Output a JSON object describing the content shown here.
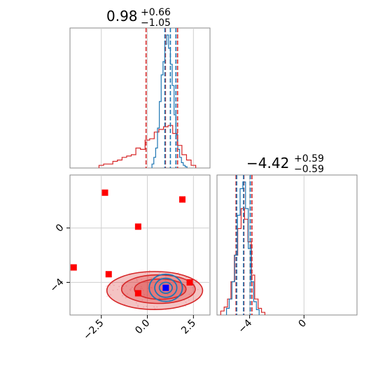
{
  "chart_data": [
    {
      "type": "histogram",
      "panel": "top-left marginal",
      "title": {
        "value": "0.98",
        "plus": "+0.66",
        "minus": "−1.05"
      },
      "xlim": [
        -4.2,
        3.4
      ],
      "grid": true,
      "series": [
        {
          "name": "",
          "color": "#d62728",
          "bins": [
            -2.5,
            -2.25,
            -2.0,
            -1.75,
            -1.5,
            -1.25,
            -1.0,
            -0.75,
            -0.5,
            -0.25,
            0.0,
            0.25,
            0.5,
            0.75,
            1.0,
            1.25,
            1.5,
            1.75,
            2.0,
            2.25,
            2.5
          ],
          "counts": [
            0.02,
            0.03,
            0.03,
            0.05,
            0.06,
            0.08,
            0.09,
            0.1,
            0.15,
            0.14,
            0.21,
            0.22,
            0.27,
            0.29,
            0.31,
            0.32,
            0.26,
            0.17,
            0.1,
            0.06,
            0.02
          ],
          "quantile_lines": [
            -0.07,
            0.98,
            1.64
          ]
        },
        {
          "name": "",
          "color": "#1f77b4",
          "bins": [
            0.3,
            0.4,
            0.5,
            0.6,
            0.7,
            0.8,
            0.9,
            1.0,
            1.1,
            1.2,
            1.3,
            1.4,
            1.5,
            1.6,
            1.7,
            1.8,
            1.9,
            2.0,
            2.1
          ],
          "counts": [
            0.03,
            0.08,
            0.15,
            0.3,
            0.5,
            0.7,
            0.8,
            0.93,
            1.0,
            0.9,
            0.78,
            0.62,
            0.4,
            0.25,
            0.14,
            0.08,
            0.04,
            0.02,
            0.01
          ],
          "quantile_lines": [
            0.95,
            1.25,
            1.55
          ]
        }
      ]
    },
    {
      "type": "scatter",
      "panel": "bottom-left joint",
      "xlim": [
        -4.2,
        3.4
      ],
      "ylim": [
        -6.4,
        3.9
      ],
      "x_ticks": [
        "−2.5",
        "0.0",
        "2.5"
      ],
      "x_tick_values": [
        -2.5,
        0.0,
        2.5
      ],
      "y_ticks": [
        "0",
        "−4"
      ],
      "y_tick_values": [
        0,
        -4
      ],
      "grid": true,
      "red_points": [
        [
          -2.3,
          2.6
        ],
        [
          1.9,
          2.1
        ],
        [
          -0.5,
          0.1
        ],
        [
          -4.0,
          -2.9
        ],
        [
          -2.1,
          -3.4
        ],
        [
          -0.5,
          -4.8
        ],
        [
          2.3,
          -4.0
        ]
      ],
      "blue_points": [
        [
          1.0,
          -4.4
        ]
      ],
      "contours": [
        {
          "color": "#d62728",
          "cx": 0.4,
          "cy": -4.6,
          "rx": 2.6,
          "ry": 1.4
        },
        {
          "color": "#d62728",
          "cx": 0.6,
          "cy": -4.5,
          "rx": 2.0,
          "ry": 1.05
        },
        {
          "color": "#d62728",
          "cx": 0.7,
          "cy": -4.5,
          "rx": 1.4,
          "ry": 0.75
        },
        {
          "color": "#1f77b4",
          "cx": 1.0,
          "cy": -4.4,
          "rx": 0.9,
          "ry": 1.0
        },
        {
          "color": "#1f77b4",
          "cx": 1.0,
          "cy": -4.4,
          "rx": 0.6,
          "ry": 0.7
        },
        {
          "color": "#1f77b4",
          "cx": 1.0,
          "cy": -4.4,
          "rx": 0.35,
          "ry": 0.4
        }
      ]
    },
    {
      "type": "histogram",
      "panel": "bottom-right marginal",
      "title": {
        "value": "−4.42",
        "plus": "+0.59",
        "minus": "−0.59"
      },
      "xlim": [
        -6.4,
        3.9
      ],
      "x_ticks": [
        "−4",
        "0"
      ],
      "x_tick_values": [
        -4,
        0
      ],
      "grid": true,
      "series": [
        {
          "name": "",
          "color": "#d62728",
          "bins": [
            -6.0,
            -5.75,
            -5.5,
            -5.25,
            -5.0,
            -4.75,
            -4.5,
            -4.25,
            -4.0,
            -3.75,
            -3.5,
            -3.25,
            -3.0
          ],
          "counts": [
            0.03,
            0.06,
            0.12,
            0.25,
            0.45,
            0.65,
            0.8,
            0.72,
            0.55,
            0.3,
            0.12,
            0.05,
            0.02
          ],
          "quantile_lines": [
            -5.0,
            -4.42,
            -3.83
          ]
        },
        {
          "name": "",
          "color": "#1f77b4",
          "bins": [
            -5.6,
            -5.4,
            -5.2,
            -5.0,
            -4.8,
            -4.6,
            -4.4,
            -4.2,
            -4.0,
            -3.8,
            -3.6,
            -3.4
          ],
          "counts": [
            0.05,
            0.12,
            0.25,
            0.45,
            0.75,
            0.95,
            1.0,
            0.8,
            0.5,
            0.25,
            0.1,
            0.04
          ],
          "quantile_lines": [
            -4.95,
            -4.45,
            -3.95
          ]
        }
      ]
    }
  ]
}
